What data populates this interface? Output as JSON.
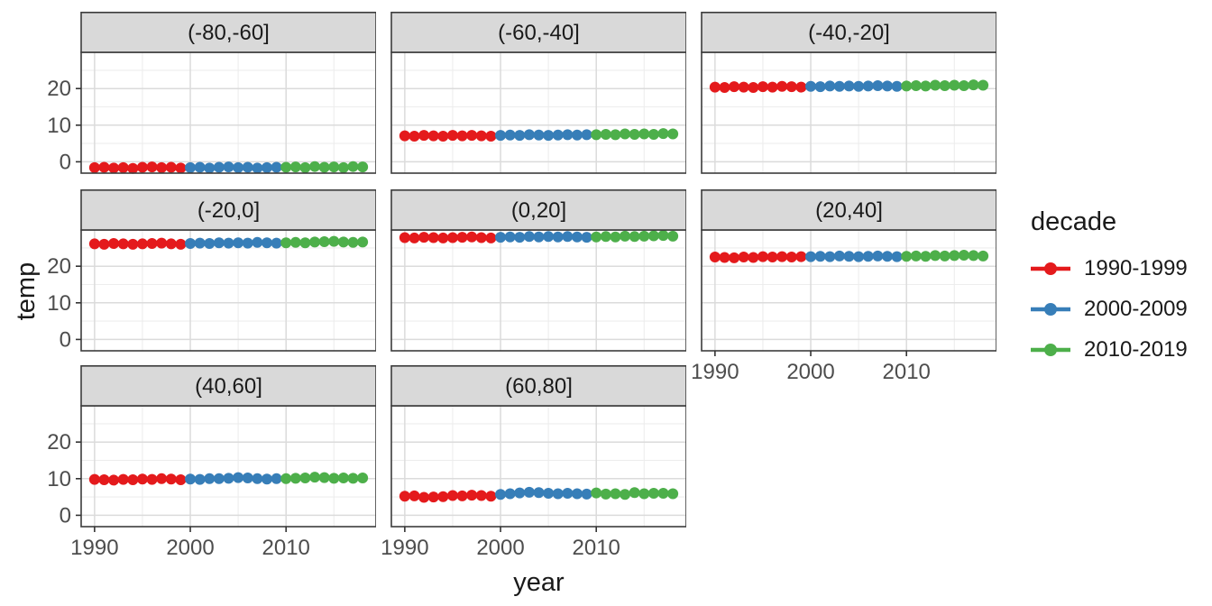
{
  "figure": {
    "y_axis_title": "temp",
    "x_axis_title": "year",
    "legend": {
      "title": "decade",
      "items": [
        {
          "label": "1990-1999",
          "color": "#E41A1C"
        },
        {
          "label": "2000-2009",
          "color": "#377EB8"
        },
        {
          "label": "2010-2019",
          "color": "#4DAF4A"
        }
      ]
    }
  },
  "chart_data": {
    "type": "scatter",
    "title": "",
    "xlabel": "year",
    "ylabel": "temp",
    "legend_title": "decade",
    "legend_position": "right",
    "grid": "on",
    "xlim": [
      1988.6,
      2019.4
    ],
    "ylim": [
      -3.1,
      29.9
    ],
    "x_ticks": [
      1990,
      2000,
      2010
    ],
    "x_minor_ticks": [
      1995,
      2005,
      2015
    ],
    "y_ticks": [
      0,
      10,
      20
    ],
    "y_minor_ticks": [
      5,
      15,
      25
    ],
    "x": [
      1990,
      1991,
      1992,
      1993,
      1994,
      1995,
      1996,
      1997,
      1998,
      1999,
      2000,
      2001,
      2002,
      2003,
      2004,
      2005,
      2006,
      2007,
      2008,
      2009,
      2010,
      2011,
      2012,
      2013,
      2014,
      2015,
      2016,
      2017,
      2018
    ],
    "decades": [
      {
        "name": "1990-1999",
        "color": "#E41A1C",
        "from": 1990,
        "to": 1999
      },
      {
        "name": "2000-2009",
        "color": "#377EB8",
        "from": 2000,
        "to": 2009
      },
      {
        "name": "2010-2019",
        "color": "#4DAF4A",
        "from": 2010,
        "to": 2019
      }
    ],
    "facets": [
      {
        "label": "(-80,-60]",
        "values": [
          -1.6,
          -1.5,
          -1.7,
          -1.6,
          -1.8,
          -1.5,
          -1.4,
          -1.6,
          -1.5,
          -1.7,
          -1.6,
          -1.5,
          -1.7,
          -1.5,
          -1.4,
          -1.6,
          -1.5,
          -1.7,
          -1.6,
          -1.5,
          -1.5,
          -1.4,
          -1.6,
          -1.3,
          -1.5,
          -1.4,
          -1.6,
          -1.3,
          -1.4
        ]
      },
      {
        "label": "(-60,-40]",
        "values": [
          7.1,
          7.0,
          7.2,
          7.1,
          7.0,
          7.2,
          7.1,
          7.2,
          7.1,
          7.0,
          7.2,
          7.3,
          7.2,
          7.4,
          7.3,
          7.2,
          7.3,
          7.4,
          7.3,
          7.4,
          7.4,
          7.5,
          7.4,
          7.6,
          7.5,
          7.6,
          7.5,
          7.7,
          7.6
        ]
      },
      {
        "label": "(-40,-20]",
        "values": [
          20.4,
          20.3,
          20.5,
          20.4,
          20.3,
          20.5,
          20.4,
          20.6,
          20.5,
          20.4,
          20.6,
          20.5,
          20.7,
          20.6,
          20.7,
          20.6,
          20.7,
          20.8,
          20.7,
          20.6,
          20.7,
          20.8,
          20.7,
          20.9,
          20.8,
          20.9,
          20.8,
          21.0,
          20.9
        ]
      },
      {
        "label": "(-20,0]",
        "values": [
          26.1,
          26.0,
          26.2,
          26.1,
          26.0,
          26.1,
          26.2,
          26.3,
          26.1,
          26.0,
          26.2,
          26.3,
          26.2,
          26.4,
          26.3,
          26.4,
          26.3,
          26.5,
          26.4,
          26.3,
          26.4,
          26.5,
          26.4,
          26.6,
          26.7,
          26.8,
          26.6,
          26.5,
          26.6
        ]
      },
      {
        "label": "(0,20]",
        "values": [
          27.8,
          27.7,
          27.9,
          27.8,
          27.7,
          27.8,
          27.9,
          28.0,
          27.8,
          27.7,
          27.9,
          28.0,
          27.9,
          28.1,
          28.0,
          28.1,
          28.0,
          28.1,
          28.0,
          27.9,
          28.0,
          28.1,
          28.0,
          28.2,
          28.1,
          28.2,
          28.3,
          28.4,
          28.2
        ]
      },
      {
        "label": "(20,40]",
        "values": [
          22.5,
          22.4,
          22.3,
          22.5,
          22.4,
          22.6,
          22.5,
          22.6,
          22.5,
          22.6,
          22.6,
          22.7,
          22.6,
          22.8,
          22.7,
          22.6,
          22.7,
          22.8,
          22.7,
          22.6,
          22.7,
          22.8,
          22.7,
          22.9,
          22.8,
          22.9,
          23.0,
          22.9,
          22.8
        ]
      },
      {
        "label": "(40,60]",
        "values": [
          9.8,
          9.7,
          9.6,
          9.8,
          9.7,
          9.9,
          9.8,
          10.0,
          9.9,
          9.7,
          9.9,
          9.8,
          10.0,
          10.0,
          10.1,
          10.3,
          10.2,
          10.0,
          9.9,
          10.0,
          10.0,
          10.1,
          10.2,
          10.4,
          10.3,
          10.1,
          10.2,
          10.1,
          10.2
        ]
      },
      {
        "label": "(60,80]",
        "values": [
          5.2,
          5.3,
          4.9,
          5.0,
          5.1,
          5.4,
          5.3,
          5.5,
          5.4,
          5.2,
          5.7,
          5.9,
          6.1,
          6.3,
          6.2,
          6.0,
          5.9,
          6.0,
          5.9,
          5.8,
          6.1,
          5.8,
          5.9,
          5.7,
          6.2,
          5.9,
          6.0,
          6.0,
          5.9
        ]
      }
    ],
    "style": {
      "strip_fill": "#D9D9D9",
      "panel_border": "#3C3C3C",
      "grid_major": "#DBDBDB",
      "grid_minor": "#EDEDED",
      "tick_label_color": "#4D4D4D",
      "point_radius": 6
    }
  }
}
